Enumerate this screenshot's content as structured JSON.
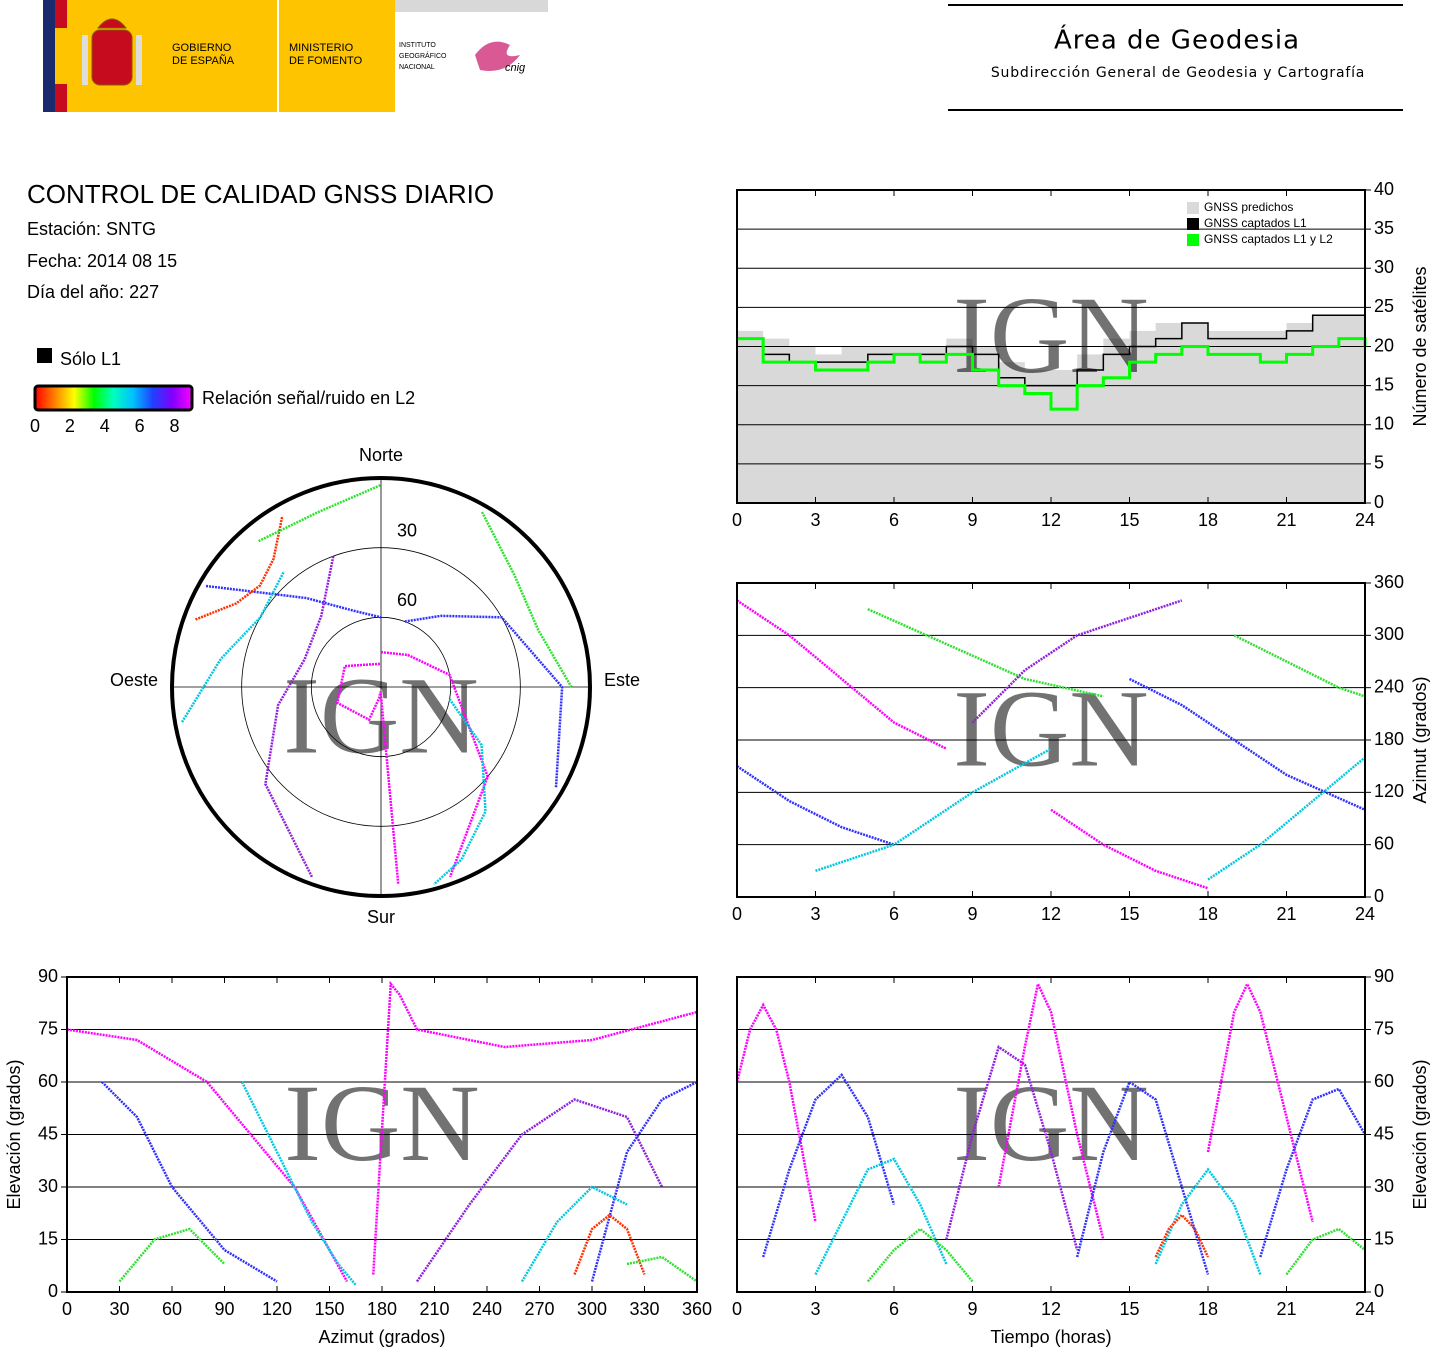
{
  "header": {
    "government": [
      "GOBIERNO",
      "DE ESPAÑA"
    ],
    "ministry": [
      "MINISTERIO",
      "DE FOMENTO"
    ],
    "institute": [
      "INSTITUTO",
      "GEOGRÁFICO",
      "NACIONAL"
    ],
    "cnig": "cnig",
    "area": "Área de Geodesia",
    "subdirection": "Subdirección General de Geodesia y Cartografía"
  },
  "report": {
    "title": "CONTROL DE CALIDAD GNSS DIARIO",
    "station": "Estación: SNTG",
    "date": "Fecha: 2014 08 15",
    "doy": "Día del año: 227"
  },
  "legend": {
    "only_l1": "Sólo L1",
    "only_l1_color": "#000000",
    "snr_label": "Relación señal/ruido en L2",
    "snr_colors": [
      "#ff0000",
      "#ff8000",
      "#ffff00",
      "#00ff00",
      "#00ffc0",
      "#00c0ff",
      "#2040ff",
      "#8000ff",
      "#ff00ff"
    ],
    "snr_range": [
      0,
      9
    ],
    "snr_ticks": [
      0,
      2,
      4,
      6,
      8
    ]
  },
  "chart_data": [
    {
      "type": "line",
      "step": true,
      "watermark": "IGN",
      "ylabel": "Número de satélites",
      "yaxis_side": "right",
      "grid": true,
      "legend": "top-right",
      "x": [
        0,
        1,
        2,
        3,
        4,
        5,
        6,
        7,
        8,
        9,
        10,
        11,
        12,
        13,
        14,
        15,
        16,
        17,
        18,
        19,
        20,
        21,
        22,
        23,
        24
      ],
      "xlim": [
        0,
        24
      ],
      "xticks": [
        0,
        3,
        6,
        9,
        12,
        15,
        18,
        21,
        24
      ],
      "ylim": [
        0,
        40
      ],
      "yticks": [
        0,
        5,
        10,
        15,
        20,
        25,
        30,
        35,
        40
      ],
      "series": [
        {
          "name": "GNSS predichos",
          "color": "#d9d9d9",
          "fill": true,
          "values": [
            22,
            21,
            20,
            19,
            20,
            20,
            20,
            20,
            21,
            20,
            18,
            17,
            17,
            19,
            21,
            22,
            23,
            23,
            22,
            22,
            22,
            23,
            24,
            24,
            25
          ]
        },
        {
          "name": "GNSS captados L1",
          "color": "#000000",
          "values": [
            21,
            19,
            18,
            18,
            18,
            19,
            19,
            19,
            20,
            19,
            16,
            15,
            15,
            17,
            19,
            20,
            21,
            23,
            21,
            21,
            21,
            22,
            24,
            24,
            25
          ]
        },
        {
          "name": "GNSS captados L1 y L2",
          "color": "#00ff00",
          "values": [
            21,
            18,
            18,
            17,
            17,
            18,
            19,
            18,
            19,
            17,
            15,
            14,
            12,
            15,
            16,
            18,
            19,
            20,
            19,
            19,
            18,
            19,
            20,
            21,
            20
          ]
        }
      ]
    },
    {
      "type": "polar",
      "directions": [
        "Norte",
        "Este",
        "Sur",
        "Oeste"
      ],
      "rticks": [
        30,
        60
      ],
      "rlim": [
        0,
        90
      ],
      "watermark": "IGN",
      "series": [
        {
          "color": "#ff00ff",
          "x": [
            0,
            40,
            80,
            130,
            160
          ],
          "values": [
            75,
            72,
            60,
            30,
            3
          ]
        },
        {
          "color": "#3030ff",
          "x": [
            20,
            40,
            60,
            90,
            120
          ],
          "values": [
            60,
            50,
            30,
            12,
            3
          ]
        },
        {
          "color": "#00c8e0",
          "x": [
            100,
            120,
            140,
            155,
            165
          ],
          "values": [
            60,
            40,
            20,
            8,
            2
          ]
        },
        {
          "color": "#30e030",
          "x": [
            30,
            50,
            70,
            90
          ],
          "values": [
            3,
            15,
            18,
            8
          ]
        },
        {
          "color": "#9020e0",
          "x": [
            200,
            230,
            260,
            290,
            320,
            340
          ],
          "values": [
            3,
            25,
            45,
            55,
            50,
            30
          ]
        },
        {
          "color": "#ff00ff",
          "x": [
            175,
            185,
            190,
            200,
            250,
            300,
            360
          ],
          "values": [
            5,
            88,
            85,
            75,
            70,
            72,
            80
          ]
        },
        {
          "color": "#3030ff",
          "x": [
            300,
            320,
            340,
            360
          ],
          "values": [
            3,
            40,
            55,
            60
          ]
        },
        {
          "color": "#00c8e0",
          "x": [
            260,
            280,
            300,
            320
          ],
          "values": [
            3,
            20,
            30,
            25
          ]
        },
        {
          "color": "#ff3000",
          "x": [
            290,
            300,
            310,
            320,
            330
          ],
          "values": [
            5,
            18,
            22,
            18,
            5
          ]
        },
        {
          "color": "#30e030",
          "x": [
            320,
            340,
            360
          ],
          "values": [
            8,
            10,
            3
          ]
        }
      ]
    },
    {
      "type": "scatter",
      "watermark": "IGN",
      "ylabel": "Azimut (grados)",
      "yaxis_side": "right",
      "grid": true,
      "xlim": [
        0,
        24
      ],
      "xticks": [
        0,
        3,
        6,
        9,
        12,
        15,
        18,
        21,
        24
      ],
      "ylim": [
        0,
        360
      ],
      "yticks": [
        0,
        60,
        120,
        180,
        240,
        300,
        360
      ],
      "series": [
        {
          "color": "#ff00ff",
          "x": [
            0,
            2,
            4,
            6,
            8
          ],
          "values": [
            340,
            300,
            250,
            200,
            170
          ]
        },
        {
          "color": "#3030ff",
          "x": [
            0,
            2,
            4,
            6
          ],
          "values": [
            150,
            110,
            80,
            60
          ]
        },
        {
          "color": "#00c8e0",
          "x": [
            3,
            6,
            9,
            12
          ],
          "values": [
            30,
            60,
            120,
            170
          ]
        },
        {
          "color": "#30e030",
          "x": [
            5,
            8,
            11,
            14
          ],
          "values": [
            330,
            290,
            250,
            230
          ]
        },
        {
          "color": "#9020e0",
          "x": [
            9,
            11,
            13,
            15,
            17
          ],
          "values": [
            200,
            260,
            300,
            320,
            340
          ]
        },
        {
          "color": "#ff00ff",
          "x": [
            12,
            14,
            16,
            18
          ],
          "values": [
            100,
            60,
            30,
            10
          ]
        },
        {
          "color": "#3030ff",
          "x": [
            15,
            17,
            19,
            21,
            24
          ],
          "values": [
            250,
            220,
            180,
            140,
            100
          ]
        },
        {
          "color": "#00c8e0",
          "x": [
            18,
            20,
            22,
            24
          ],
          "values": [
            20,
            60,
            110,
            160
          ]
        },
        {
          "color": "#30e030",
          "x": [
            19,
            21,
            23,
            24
          ],
          "values": [
            300,
            270,
            240,
            230
          ]
        }
      ]
    },
    {
      "type": "scatter",
      "watermark": "IGN",
      "xlabel": "Azimut (grados)",
      "ylabel": "Elevación (grados)",
      "yaxis_side": "left",
      "grid": true,
      "xlim": [
        0,
        360
      ],
      "xticks": [
        0,
        30,
        60,
        90,
        120,
        150,
        180,
        210,
        240,
        270,
        300,
        330,
        360
      ],
      "ylim": [
        0,
        90
      ],
      "yticks": [
        0,
        15,
        30,
        45,
        60,
        75,
        90
      ],
      "series": [
        {
          "color": "#ff00ff",
          "x": [
            0,
            40,
            80,
            130,
            160
          ],
          "values": [
            75,
            72,
            60,
            30,
            3
          ]
        },
        {
          "color": "#3030ff",
          "x": [
            20,
            40,
            60,
            90,
            120
          ],
          "values": [
            60,
            50,
            30,
            12,
            3
          ]
        },
        {
          "color": "#00c8e0",
          "x": [
            100,
            120,
            140,
            155,
            165
          ],
          "values": [
            60,
            40,
            20,
            8,
            2
          ]
        },
        {
          "color": "#30e030",
          "x": [
            30,
            50,
            70,
            90
          ],
          "values": [
            3,
            15,
            18,
            8
          ]
        },
        {
          "color": "#9020e0",
          "x": [
            200,
            230,
            260,
            290,
            320,
            340
          ],
          "values": [
            3,
            25,
            45,
            55,
            50,
            30
          ]
        },
        {
          "color": "#ff00ff",
          "x": [
            175,
            185,
            190,
            200,
            250,
            300,
            360
          ],
          "values": [
            5,
            88,
            85,
            75,
            70,
            72,
            80
          ]
        },
        {
          "color": "#3030ff",
          "x": [
            300,
            320,
            340,
            360
          ],
          "values": [
            3,
            40,
            55,
            60
          ]
        },
        {
          "color": "#00c8e0",
          "x": [
            260,
            280,
            300,
            320
          ],
          "values": [
            3,
            20,
            30,
            25
          ]
        },
        {
          "color": "#ff3000",
          "x": [
            290,
            300,
            310,
            320,
            330
          ],
          "values": [
            5,
            18,
            22,
            18,
            5
          ]
        },
        {
          "color": "#30e030",
          "x": [
            320,
            340,
            360
          ],
          "values": [
            8,
            10,
            3
          ]
        }
      ]
    },
    {
      "type": "scatter",
      "watermark": "IGN",
      "xlabel": "Tiempo (horas)",
      "ylabel": "Elevación (grados)",
      "yaxis_side": "right",
      "grid": true,
      "xlim": [
        0,
        24
      ],
      "xticks": [
        0,
        3,
        6,
        9,
        12,
        15,
        18,
        21,
        24
      ],
      "ylim": [
        0,
        90
      ],
      "yticks": [
        0,
        15,
        30,
        45,
        60,
        75,
        90
      ],
      "series": [
        {
          "color": "#ff00ff",
          "x": [
            0,
            0.5,
            1,
            1.5,
            2,
            2.5,
            3
          ],
          "values": [
            60,
            75,
            82,
            75,
            60,
            40,
            20
          ]
        },
        {
          "color": "#3030ff",
          "x": [
            1,
            2,
            3,
            4,
            5,
            6
          ],
          "values": [
            10,
            35,
            55,
            62,
            50,
            25
          ]
        },
        {
          "color": "#00c8e0",
          "x": [
            3,
            4,
            5,
            6,
            7,
            8
          ],
          "values": [
            5,
            20,
            35,
            38,
            25,
            8
          ]
        },
        {
          "color": "#30e030",
          "x": [
            5,
            6,
            7,
            8,
            9
          ],
          "values": [
            3,
            12,
            18,
            12,
            3
          ]
        },
        {
          "color": "#9020e0",
          "x": [
            8,
            9,
            10,
            11,
            12,
            13
          ],
          "values": [
            15,
            45,
            70,
            65,
            40,
            12
          ]
        },
        {
          "color": "#ff00ff",
          "x": [
            10,
            11,
            11.5,
            12,
            13,
            14
          ],
          "values": [
            30,
            70,
            88,
            80,
            45,
            15
          ]
        },
        {
          "color": "#3030ff",
          "x": [
            13,
            14,
            15,
            16,
            17,
            18
          ],
          "values": [
            10,
            40,
            60,
            55,
            30,
            5
          ]
        },
        {
          "color": "#00c8e0",
          "x": [
            16,
            17,
            18,
            19,
            20
          ],
          "values": [
            8,
            25,
            35,
            25,
            5
          ]
        },
        {
          "color": "#ff00ff",
          "x": [
            18,
            19,
            19.5,
            20,
            21,
            22
          ],
          "values": [
            40,
            80,
            88,
            80,
            50,
            20
          ]
        },
        {
          "color": "#3030ff",
          "x": [
            20,
            21,
            22,
            23,
            24
          ],
          "values": [
            10,
            35,
            55,
            58,
            45
          ]
        },
        {
          "color": "#30e030",
          "x": [
            21,
            22,
            23,
            24
          ],
          "values": [
            5,
            15,
            18,
            12
          ]
        },
        {
          "color": "#ff3000",
          "x": [
            16,
            16.5,
            17,
            17.5,
            18
          ],
          "values": [
            10,
            18,
            22,
            18,
            10
          ]
        }
      ]
    }
  ]
}
